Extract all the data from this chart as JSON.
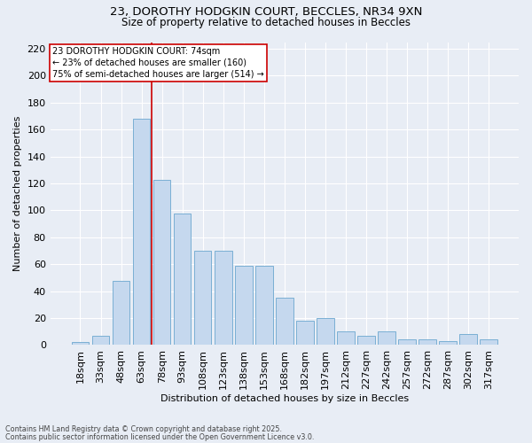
{
  "title_line1": "23, DOROTHY HODGKIN COURT, BECCLES, NR34 9XN",
  "title_line2": "Size of property relative to detached houses in Beccles",
  "xlabel": "Distribution of detached houses by size in Beccles",
  "ylabel": "Number of detached properties",
  "categories": [
    "18sqm",
    "33sqm",
    "48sqm",
    "63sqm",
    "78sqm",
    "93sqm",
    "108sqm",
    "123sqm",
    "138sqm",
    "153sqm",
    "168sqm",
    "182sqm",
    "197sqm",
    "212sqm",
    "227sqm",
    "242sqm",
    "257sqm",
    "272sqm",
    "287sqm",
    "302sqm",
    "317sqm"
  ],
  "values": [
    2,
    7,
    48,
    168,
    123,
    98,
    70,
    70,
    59,
    59,
    35,
    18,
    20,
    10,
    7,
    10,
    4,
    4,
    3,
    8,
    4
  ],
  "bar_color": "#c5d8ee",
  "bar_edge_color": "#7aafd4",
  "background_color": "#e8edf5",
  "grid_color": "#ffffff",
  "vline_color": "#cc0000",
  "vline_x_index": 4,
  "annotation_title": "23 DOROTHY HODGKIN COURT: 74sqm",
  "annotation_line1": "← 23% of detached houses are smaller (160)",
  "annotation_line2": "75% of semi-detached houses are larger (514) →",
  "annotation_box_color": "white",
  "annotation_box_edge": "#cc0000",
  "ylim": [
    0,
    225
  ],
  "yticks": [
    0,
    20,
    40,
    60,
    80,
    100,
    120,
    140,
    160,
    180,
    200,
    220
  ],
  "footnote1": "Contains HM Land Registry data © Crown copyright and database right 2025.",
  "footnote2": "Contains public sector information licensed under the Open Government Licence v3.0."
}
